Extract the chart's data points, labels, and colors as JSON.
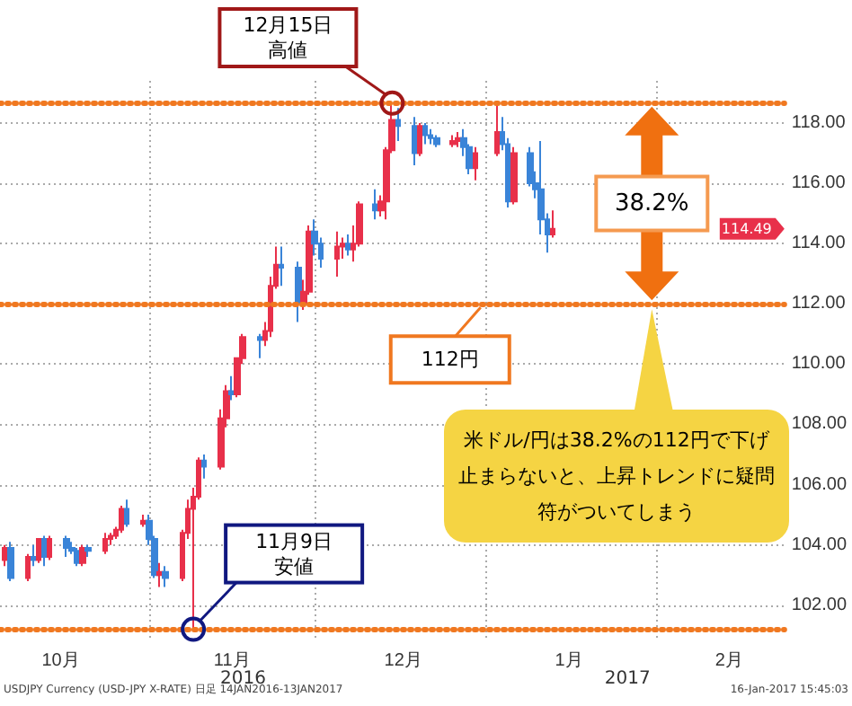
{
  "chart_data": {
    "type": "candlestick",
    "x": [
      "2016-10-06",
      "2016-10-07",
      "2016-10-10",
      "2016-10-11",
      "2016-10-12",
      "2016-10-13",
      "2016-10-14",
      "2016-10-17",
      "2016-10-18",
      "2016-10-19",
      "2016-10-20",
      "2016-10-21",
      "2016-10-24",
      "2016-10-25",
      "2016-10-26",
      "2016-10-27",
      "2016-10-28",
      "2016-10-31",
      "2016-11-01",
      "2016-11-02",
      "2016-11-03",
      "2016-11-04",
      "2016-11-07",
      "2016-11-08",
      "2016-11-09",
      "2016-11-10",
      "2016-11-11",
      "2016-11-14",
      "2016-11-15",
      "2016-11-16",
      "2016-11-17",
      "2016-11-18",
      "2016-11-21",
      "2016-11-22",
      "2016-11-23",
      "2016-11-24",
      "2016-11-25",
      "2016-11-28",
      "2016-11-29",
      "2016-11-30",
      "2016-12-01",
      "2016-12-02",
      "2016-12-05",
      "2016-12-06",
      "2016-12-07",
      "2016-12-08",
      "2016-12-09",
      "2016-12-12",
      "2016-12-13",
      "2016-12-14",
      "2016-12-15",
      "2016-12-16",
      "2016-12-19",
      "2016-12-20",
      "2016-12-21",
      "2016-12-22",
      "2016-12-23",
      "2016-12-26",
      "2016-12-27",
      "2016-12-28",
      "2016-12-29",
      "2016-12-30",
      "2017-01-03",
      "2017-01-04",
      "2017-01-05",
      "2017-01-06",
      "2017-01-09",
      "2017-01-10",
      "2017-01-11",
      "2017-01-12",
      "2017-01-13"
    ],
    "ohlc": [
      [
        103.5,
        104.0,
        103.3,
        103.9
      ],
      [
        103.9,
        104.1,
        102.8,
        102.9
      ],
      [
        102.9,
        103.7,
        102.8,
        103.6
      ],
      [
        103.6,
        104.0,
        103.3,
        103.5
      ],
      [
        103.5,
        104.2,
        103.4,
        104.2
      ],
      [
        104.2,
        104.3,
        103.3,
        103.6
      ],
      [
        103.6,
        104.3,
        103.5,
        104.2
      ],
      [
        104.2,
        104.3,
        103.6,
        103.9
      ],
      [
        103.9,
        104.1,
        103.7,
        103.8
      ],
      [
        103.8,
        103.9,
        103.3,
        103.4
      ],
      [
        103.4,
        104.0,
        103.3,
        103.9
      ],
      [
        103.9,
        104.0,
        103.6,
        103.8
      ],
      [
        103.8,
        104.4,
        103.7,
        104.2
      ],
      [
        104.2,
        104.4,
        104.0,
        104.3
      ],
      [
        104.3,
        104.6,
        104.2,
        104.5
      ],
      [
        104.5,
        105.3,
        104.4,
        105.2
      ],
      [
        105.2,
        105.5,
        104.6,
        104.7
      ],
      [
        104.7,
        105.0,
        104.6,
        104.8
      ],
      [
        104.8,
        105.0,
        104.0,
        104.2
      ],
      [
        104.2,
        104.3,
        102.9,
        103.0
      ],
      [
        103.0,
        103.4,
        102.6,
        103.1
      ],
      [
        103.1,
        103.3,
        102.6,
        102.9
      ],
      [
        102.9,
        104.5,
        102.8,
        104.4
      ],
      [
        104.4,
        105.5,
        104.2,
        105.2
      ],
      [
        105.2,
        105.9,
        101.2,
        105.6
      ],
      [
        105.6,
        106.9,
        105.5,
        106.8
      ],
      [
        106.8,
        107.0,
        106.2,
        106.6
      ],
      [
        106.6,
        108.5,
        106.5,
        108.2
      ],
      [
        108.2,
        109.3,
        107.9,
        109.1
      ],
      [
        109.1,
        109.6,
        108.8,
        109.0
      ],
      [
        109.0,
        110.2,
        108.9,
        110.2
      ],
      [
        110.2,
        111.0,
        110.0,
        110.9
      ],
      [
        110.9,
        111.0,
        110.2,
        110.8
      ],
      [
        110.8,
        111.4,
        110.6,
        111.1
      ],
      [
        111.1,
        112.9,
        110.9,
        112.6
      ],
      [
        112.6,
        113.9,
        112.5,
        113.3
      ],
      [
        113.3,
        113.9,
        112.6,
        113.2
      ],
      [
        113.2,
        113.4,
        111.4,
        112.0
      ],
      [
        112.0,
        112.8,
        111.8,
        112.4
      ],
      [
        112.4,
        114.6,
        112.3,
        114.4
      ],
      [
        114.4,
        114.8,
        113.6,
        114.0
      ],
      [
        114.0,
        114.2,
        113.2,
        113.5
      ],
      [
        113.5,
        114.4,
        112.9,
        113.9
      ],
      [
        113.9,
        114.2,
        113.5,
        114.0
      ],
      [
        114.0,
        114.3,
        113.6,
        113.8
      ],
      [
        113.8,
        114.6,
        113.4,
        114.0
      ],
      [
        114.0,
        115.4,
        113.9,
        115.3
      ],
      [
        115.3,
        115.8,
        114.8,
        115.1
      ],
      [
        115.1,
        115.6,
        114.9,
        115.4
      ],
      [
        115.4,
        117.2,
        114.8,
        117.1
      ],
      [
        117.1,
        118.66,
        117.0,
        118.1
      ],
      [
        118.1,
        118.5,
        117.4,
        117.9
      ],
      [
        117.9,
        118.2,
        116.6,
        117.0
      ],
      [
        117.0,
        118.0,
        116.9,
        117.9
      ],
      [
        117.9,
        118.0,
        117.3,
        117.6
      ],
      [
        117.6,
        117.8,
        117.3,
        117.5
      ],
      [
        117.5,
        117.6,
        117.2,
        117.3
      ],
      [
        117.3,
        117.6,
        117.2,
        117.4
      ],
      [
        117.4,
        117.7,
        117.2,
        117.5
      ],
      [
        117.5,
        117.8,
        116.9,
        117.2
      ],
      [
        117.2,
        117.3,
        116.3,
        116.5
      ],
      [
        116.5,
        117.2,
        116.1,
        117.0
      ],
      [
        117.0,
        118.6,
        116.9,
        117.7
      ],
      [
        117.7,
        118.2,
        117.1,
        117.3
      ],
      [
        117.3,
        117.5,
        115.2,
        115.4
      ],
      [
        115.4,
        117.2,
        115.3,
        117.0
      ],
      [
        117.0,
        117.2,
        115.9,
        116.0
      ],
      [
        116.0,
        116.4,
        115.5,
        115.8
      ],
      [
        115.8,
        117.4,
        114.3,
        114.8
      ],
      [
        114.8,
        115.0,
        113.7,
        114.3
      ],
      [
        114.3,
        115.1,
        114.2,
        114.49
      ]
    ],
    "colors": [
      "#e8304a",
      "#3a84d8",
      "#e8304a",
      "#3a84d8",
      "#e8304a",
      "#3a84d8",
      "#e8304a",
      "#3a84d8",
      "#3a84d8",
      "#3a84d8",
      "#e8304a",
      "#3a84d8",
      "#e8304a",
      "#e8304a",
      "#e8304a",
      "#e8304a",
      "#3a84d8",
      "#e8304a",
      "#3a84d8",
      "#3a84d8",
      "#e8304a",
      "#3a84d8",
      "#e8304a",
      "#e8304a",
      "#e8304a",
      "#e8304a",
      "#3a84d8",
      "#e8304a",
      "#e8304a",
      "#3a84d8",
      "#e8304a",
      "#e8304a",
      "#3a84d8",
      "#e8304a",
      "#e8304a",
      "#e8304a",
      "#3a84d8",
      "#3a84d8",
      "#e8304a",
      "#e8304a",
      "#3a84d8",
      "#3a84d8",
      "#e8304a",
      "#e8304a",
      "#3a84d8",
      "#e8304a",
      "#e8304a",
      "#3a84d8",
      "#e8304a",
      "#e8304a",
      "#e8304a",
      "#3a84d8",
      "#3a84d8",
      "#e8304a",
      "#3a84d8",
      "#3a84d8",
      "#3a84d8",
      "#e8304a",
      "#e8304a",
      "#3a84d8",
      "#3a84d8",
      "#e8304a",
      "#e8304a",
      "#3a84d8",
      "#3a84d8",
      "#e8304a",
      "#3a84d8",
      "#3a84d8",
      "#3a84d8",
      "#3a84d8",
      "#e8304a"
    ],
    "xlim": [
      "2016-10-05",
      "2017-02-24"
    ],
    "xticks": [
      {
        "value": "2016-10-16",
        "label": "10月"
      },
      {
        "value": "2016-11-01",
        "label": null
      },
      {
        "value": "2016-11-16",
        "label": "11月"
      },
      {
        "value": "2016-12-01",
        "label": null
      },
      {
        "value": "2016-12-17",
        "label": "12月"
      },
      {
        "value": "2017-01-01",
        "label": null
      },
      {
        "value": "2017-01-16",
        "label": "1月"
      },
      {
        "value": "2017-02-01",
        "label": null
      },
      {
        "value": "2017-02-14",
        "label": "2月"
      }
    ],
    "ylim": [
      100.8,
      119.4
    ],
    "yticks": [
      {
        "value": 102,
        "label": "102.00"
      },
      {
        "value": 104,
        "label": "104.00"
      },
      {
        "value": 106,
        "label": "106.00"
      },
      {
        "value": 108,
        "label": "108.00"
      },
      {
        "value": 110,
        "label": "110.00"
      },
      {
        "value": 112,
        "label": "112.00"
      },
      {
        "value": 114,
        "label": "114.00"
      },
      {
        "value": 116,
        "label": "116.00"
      },
      {
        "value": 118,
        "label": "118.00"
      }
    ],
    "grid": true,
    "ref_lines": [
      {
        "axis": "y",
        "value": 118.66,
        "color": "#f07820",
        "line_style": "dotted"
      },
      {
        "axis": "y",
        "value": 112,
        "label": "112円",
        "color": "#f07820",
        "line_style": "dotted"
      },
      {
        "axis": "y",
        "value": 101.2,
        "color": "#f07820",
        "line_style": "dotted"
      }
    ],
    "annotations": [
      {
        "text": "12月15日高値",
        "x": "2016-12-15",
        "y": 118.66
      },
      {
        "text": "11月9日安値",
        "x": "2016-11-09",
        "y": 101.2
      },
      "114.49",
      "2016",
      "2017",
      "38.2%",
      "米ドル/円は38.2%の112円で下げ止まらないと、上昇トレンドに疑問符がついてしまう",
      "USDJPY Currency (USD-JPY X-RATE) 日足 14JAN2016-13JAN2017",
      "16-Jan-2017 15:45:03"
    ]
  }
}
